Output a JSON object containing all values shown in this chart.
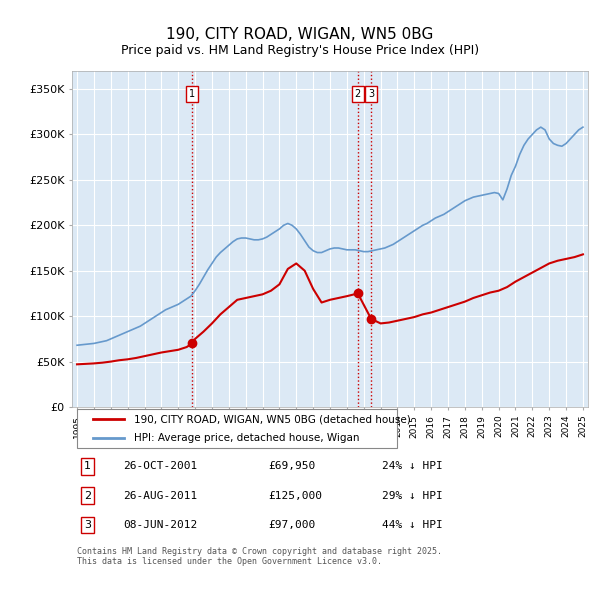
{
  "title": "190, CITY ROAD, WIGAN, WN5 0BG",
  "subtitle": "Price paid vs. HM Land Registry's House Price Index (HPI)",
  "ylabel": "",
  "ylim": [
    0,
    370000
  ],
  "yticks": [
    0,
    50000,
    100000,
    150000,
    200000,
    250000,
    300000,
    350000
  ],
  "ytick_labels": [
    "£0",
    "£50K",
    "£100K",
    "£150K",
    "£200K",
    "£250K",
    "£300K",
    "£350K"
  ],
  "bg_color": "#dce9f5",
  "plot_bg": "#dce9f5",
  "grid_color": "#ffffff",
  "red_line_color": "#cc0000",
  "blue_line_color": "#6699cc",
  "transaction_marker_color": "#cc0000",
  "sale_events": [
    {
      "date_year": 2001.82,
      "price": 69950,
      "label": "1"
    },
    {
      "date_year": 2011.65,
      "price": 125000,
      "label": "2"
    },
    {
      "date_year": 2012.44,
      "price": 97000,
      "label": "3"
    }
  ],
  "vline_color": "#cc0000",
  "vline_style": ":",
  "legend_entries": [
    "190, CITY ROAD, WIGAN, WN5 0BG (detached house)",
    "HPI: Average price, detached house, Wigan"
  ],
  "table_rows": [
    [
      "1",
      "26-OCT-2001",
      "£69,950",
      "24% ↓ HPI"
    ],
    [
      "2",
      "26-AUG-2011",
      "£125,000",
      "29% ↓ HPI"
    ],
    [
      "3",
      "08-JUN-2012",
      "£97,000",
      "44% ↓ HPI"
    ]
  ],
  "footnote": "Contains HM Land Registry data © Crown copyright and database right 2025.\nThis data is licensed under the Open Government Licence v3.0.",
  "hpi_data": {
    "years": [
      1995.0,
      1995.25,
      1995.5,
      1995.75,
      1996.0,
      1996.25,
      1996.5,
      1996.75,
      1997.0,
      1997.25,
      1997.5,
      1997.75,
      1998.0,
      1998.25,
      1998.5,
      1998.75,
      1999.0,
      1999.25,
      1999.5,
      1999.75,
      2000.0,
      2000.25,
      2000.5,
      2000.75,
      2001.0,
      2001.25,
      2001.5,
      2001.75,
      2002.0,
      2002.25,
      2002.5,
      2002.75,
      2003.0,
      2003.25,
      2003.5,
      2003.75,
      2004.0,
      2004.25,
      2004.5,
      2004.75,
      2005.0,
      2005.25,
      2005.5,
      2005.75,
      2006.0,
      2006.25,
      2006.5,
      2006.75,
      2007.0,
      2007.25,
      2007.5,
      2007.75,
      2008.0,
      2008.25,
      2008.5,
      2008.75,
      2009.0,
      2009.25,
      2009.5,
      2009.75,
      2010.0,
      2010.25,
      2010.5,
      2010.75,
      2011.0,
      2011.25,
      2011.5,
      2011.75,
      2012.0,
      2012.25,
      2012.5,
      2012.75,
      2013.0,
      2013.25,
      2013.5,
      2013.75,
      2014.0,
      2014.25,
      2014.5,
      2014.75,
      2015.0,
      2015.25,
      2015.5,
      2015.75,
      2016.0,
      2016.25,
      2016.5,
      2016.75,
      2017.0,
      2017.25,
      2017.5,
      2017.75,
      2018.0,
      2018.25,
      2018.5,
      2018.75,
      2019.0,
      2019.25,
      2019.5,
      2019.75,
      2020.0,
      2020.25,
      2020.5,
      2020.75,
      2021.0,
      2021.25,
      2021.5,
      2021.75,
      2022.0,
      2022.25,
      2022.5,
      2022.75,
      2023.0,
      2023.25,
      2023.5,
      2023.75,
      2024.0,
      2024.25,
      2024.5,
      2024.75,
      2025.0
    ],
    "values": [
      68000,
      68500,
      69000,
      69500,
      70000,
      71000,
      72000,
      73000,
      75000,
      77000,
      79000,
      81000,
      83000,
      85000,
      87000,
      89000,
      92000,
      95000,
      98000,
      101000,
      104000,
      107000,
      109000,
      111000,
      113000,
      116000,
      119000,
      122000,
      128000,
      135000,
      143000,
      151000,
      158000,
      165000,
      170000,
      174000,
      178000,
      182000,
      185000,
      186000,
      186000,
      185000,
      184000,
      184000,
      185000,
      187000,
      190000,
      193000,
      196000,
      200000,
      202000,
      200000,
      196000,
      190000,
      183000,
      176000,
      172000,
      170000,
      170000,
      172000,
      174000,
      175000,
      175000,
      174000,
      173000,
      173000,
      173000,
      172000,
      171000,
      171000,
      172000,
      173000,
      174000,
      175000,
      177000,
      179000,
      182000,
      185000,
      188000,
      191000,
      194000,
      197000,
      200000,
      202000,
      205000,
      208000,
      210000,
      212000,
      215000,
      218000,
      221000,
      224000,
      227000,
      229000,
      231000,
      232000,
      233000,
      234000,
      235000,
      236000,
      235000,
      228000,
      240000,
      255000,
      265000,
      278000,
      288000,
      295000,
      300000,
      305000,
      308000,
      305000,
      295000,
      290000,
      288000,
      287000,
      290000,
      295000,
      300000,
      305000,
      308000
    ]
  },
  "property_data": {
    "years": [
      1995.0,
      1995.5,
      1996.0,
      1996.5,
      1997.0,
      1997.5,
      1998.0,
      1998.5,
      1999.0,
      1999.5,
      2000.0,
      2000.5,
      2001.0,
      2001.5,
      2001.82,
      2002.0,
      2002.5,
      2003.0,
      2003.5,
      2004.0,
      2004.5,
      2005.0,
      2005.5,
      2006.0,
      2006.5,
      2007.0,
      2007.5,
      2008.0,
      2008.5,
      2009.0,
      2009.5,
      2010.0,
      2010.5,
      2011.0,
      2011.65,
      2012.44,
      2013.0,
      2013.5,
      2014.0,
      2014.5,
      2015.0,
      2015.5,
      2016.0,
      2016.5,
      2017.0,
      2017.5,
      2018.0,
      2018.5,
      2019.0,
      2019.5,
      2020.0,
      2020.5,
      2021.0,
      2021.5,
      2022.0,
      2022.5,
      2023.0,
      2023.5,
      2024.0,
      2024.5,
      2025.0
    ],
    "values": [
      47000,
      47500,
      48000,
      48800,
      50000,
      51500,
      52500,
      54000,
      56000,
      58000,
      60000,
      61500,
      63000,
      66000,
      69950,
      75000,
      83000,
      92000,
      102000,
      110000,
      118000,
      120000,
      122000,
      124000,
      128000,
      135000,
      152000,
      158000,
      150000,
      130000,
      115000,
      118000,
      120000,
      122000,
      125000,
      97000,
      92000,
      93000,
      95000,
      97000,
      99000,
      102000,
      104000,
      107000,
      110000,
      113000,
      116000,
      120000,
      123000,
      126000,
      128000,
      132000,
      138000,
      143000,
      148000,
      153000,
      158000,
      161000,
      163000,
      165000,
      168000
    ]
  }
}
